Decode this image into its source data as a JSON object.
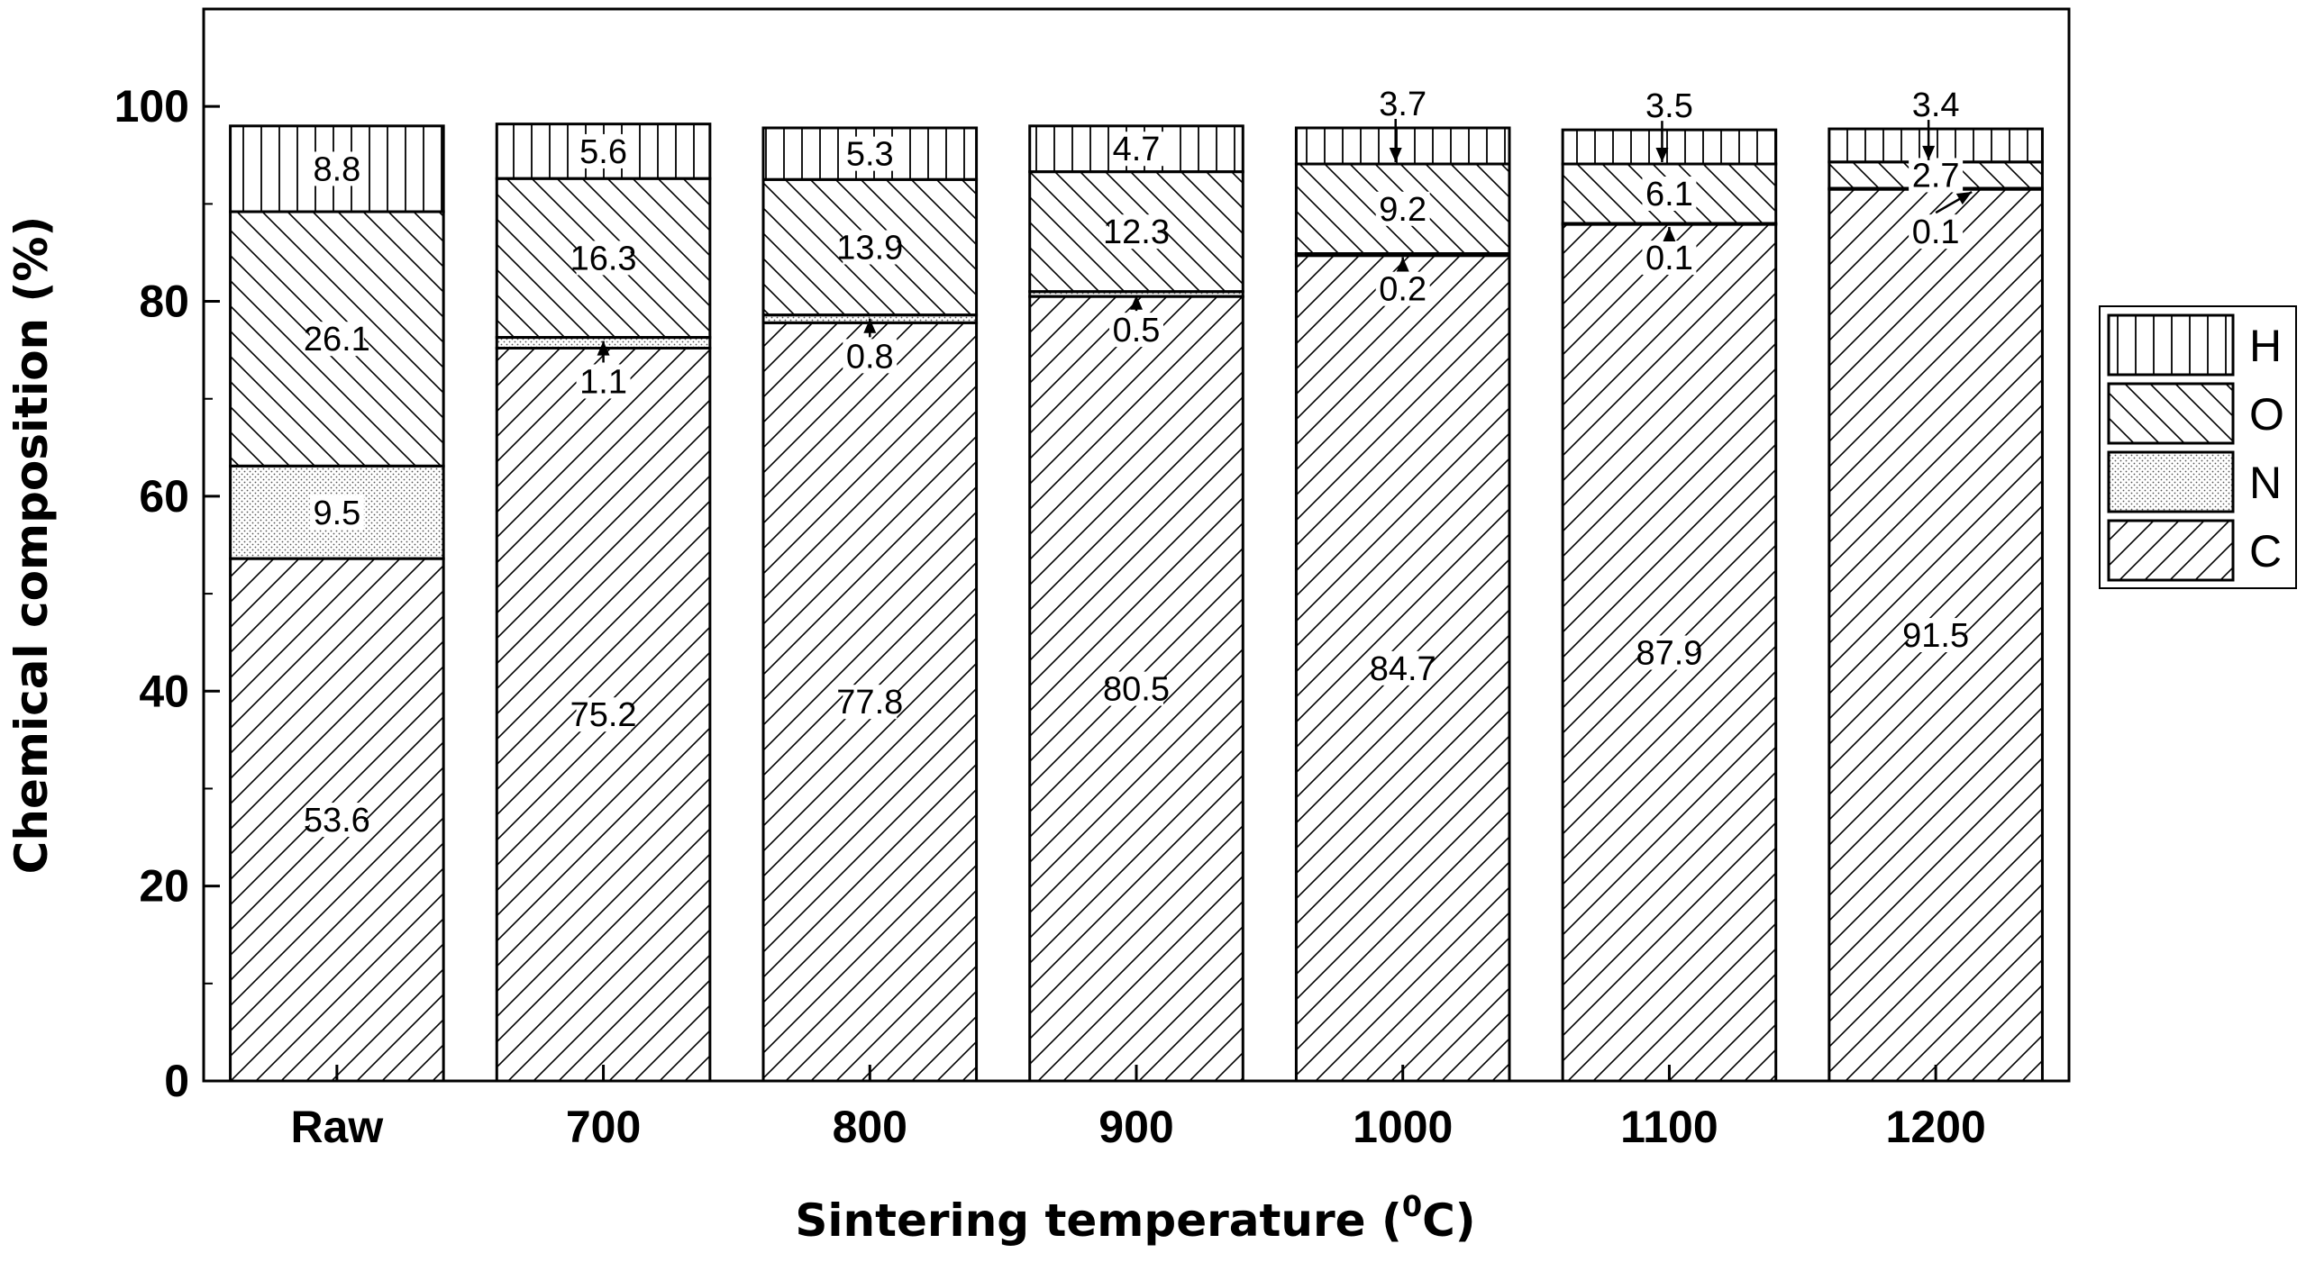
{
  "chart_data": {
    "type": "bar",
    "stacked": true,
    "xlabel": "Sintering temperature (",
    "xlabel_sup": "0",
    "xlabel_end": "C)",
    "ylabel": "Chemical composition (%)",
    "ylim": [
      0,
      110
    ],
    "yticks": [
      0,
      20,
      40,
      60,
      80,
      100
    ],
    "categories": [
      "Raw",
      "700",
      "800",
      "900",
      "1000",
      "1100",
      "1200"
    ],
    "series": [
      {
        "name": "C",
        "pattern": "hatch-right",
        "values": [
          53.6,
          75.2,
          77.8,
          80.5,
          84.7,
          87.9,
          91.5
        ],
        "labels": [
          "53.6",
          "75.2",
          "77.8",
          "80.5",
          "84.7",
          "87.9",
          "91.5"
        ]
      },
      {
        "name": "N",
        "pattern": "dots",
        "values": [
          9.5,
          1.1,
          0.8,
          0.5,
          0.2,
          0.1,
          0.1
        ],
        "labels": [
          "9.5",
          "1.1",
          "0.8",
          "0.5",
          "0.2",
          "0.1",
          "0.1"
        ]
      },
      {
        "name": "O",
        "pattern": "hatch-left",
        "values": [
          26.1,
          16.3,
          13.9,
          12.3,
          9.2,
          6.1,
          2.7
        ],
        "labels": [
          "26.1",
          "16.3",
          "13.9",
          "12.3",
          "9.2",
          "6.1",
          "2.7"
        ]
      },
      {
        "name": "H",
        "pattern": "vertical",
        "values": [
          8.8,
          5.6,
          5.3,
          4.7,
          3.7,
          3.5,
          3.4
        ],
        "labels": [
          "8.8",
          "5.6",
          "5.3",
          "4.7",
          "3.7",
          "3.5",
          "3.4"
        ]
      }
    ],
    "legend": {
      "placement": "right",
      "order": [
        "H",
        "O",
        "N",
        "C"
      ]
    },
    "grid": false,
    "colors": {
      "stroke": "#000000",
      "fill": "#ffffff"
    }
  }
}
